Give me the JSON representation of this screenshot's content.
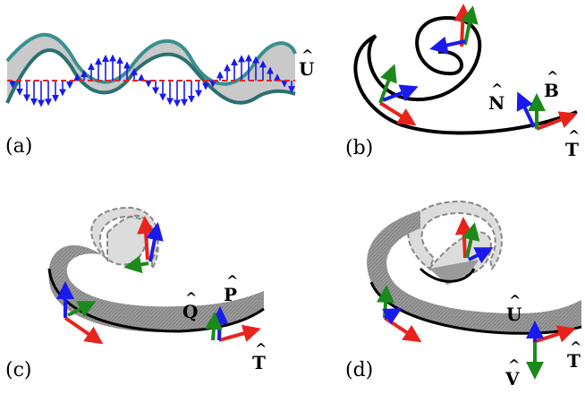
{
  "colors": {
    "red": "#e8231c",
    "green": "#1b8a1b",
    "blue": "#1a1aee",
    "curve": "#000000",
    "ribbon_dark": "#8a8a8a",
    "ribbon_light": "#d9d9d9",
    "helix_teal": "#3a8f8f"
  },
  "panels": {
    "a": {
      "label": "(a)",
      "vectors": {
        "u": "U"
      }
    },
    "b": {
      "label": "(b)",
      "vectors": {
        "t": "T",
        "n": "N",
        "b": "B"
      }
    },
    "c": {
      "label": "(c)",
      "vectors": {
        "t": "T",
        "q": "Q",
        "p": "P"
      }
    },
    "d": {
      "label": "(d)",
      "vectors": {
        "t": "T",
        "u": "U",
        "v": "V"
      }
    }
  }
}
